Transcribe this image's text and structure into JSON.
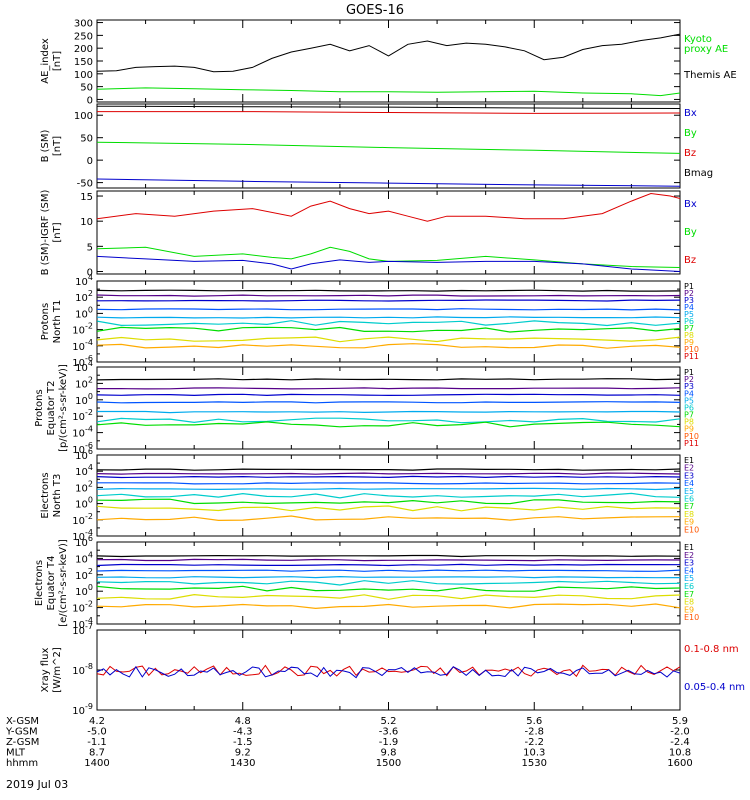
{
  "title": "GOES-16",
  "date": "2019 Jul 03",
  "colors": {
    "black": "#000000",
    "green": "#00dd00",
    "red": "#dd0000",
    "blue": "#0000cc",
    "p": [
      "#000000",
      "#550088",
      "#0000cc",
      "#0055ff",
      "#00aaee",
      "#00cccc",
      "#00dd00",
      "#dddd00",
      "#ffaa00",
      "#ff5500",
      "#dd0000"
    ]
  },
  "panels": [
    {
      "ylabel": [
        "AE_index",
        "[nT]"
      ],
      "log": false,
      "ylim": [
        -10,
        310
      ],
      "yticks": [
        "300",
        "250",
        "200",
        "150",
        "100",
        "50",
        "0"
      ],
      "legend": [
        {
          "text": "Kyoto",
          "color": "#00dd00"
        },
        {
          "text": "proxy AE",
          "color": "#00dd00"
        },
        {
          "text": "",
          "color": "#000"
        },
        {
          "text": "Themis AE",
          "color": "#000000"
        }
      ],
      "legendStyle": "ae"
    },
    {
      "ylabel": [
        "B (SM)",
        "[nT]"
      ],
      "log": false,
      "ylim": [
        -62,
        125
      ],
      "yticks": [
        "100",
        "50",
        "0",
        "-50"
      ],
      "ytickvals": [
        100,
        50,
        0,
        -50
      ],
      "legend": [
        {
          "text": "Bx",
          "color": "#0000cc"
        },
        {
          "text": "By",
          "color": "#00dd00"
        },
        {
          "text": "Bz",
          "color": "#dd0000"
        },
        {
          "text": "Bmag",
          "color": "#000000"
        }
      ],
      "legendStyle": "spread"
    },
    {
      "ylabel": [
        "B (SM)-IGRF (SM)",
        "[nT]"
      ],
      "log": false,
      "ylim": [
        -0.5,
        16
      ],
      "yticks": [
        "15",
        "10",
        "5",
        "0"
      ],
      "ytickvals": [
        15,
        10,
        5,
        0
      ],
      "legend": [
        {
          "text": "Bx",
          "color": "#0000cc"
        },
        {
          "text": "By",
          "color": "#00dd00"
        },
        {
          "text": "Bz",
          "color": "#dd0000"
        }
      ],
      "legendStyle": "spread3"
    },
    {
      "ylabel": [
        "Protons",
        "North T1"
      ],
      "log": true,
      "ylim": [
        -6,
        4
      ],
      "yticks": [
        "10^4",
        "10^2",
        "10^0",
        "10^-2",
        "10^-4",
        "10^-6"
      ],
      "ytickvals": [
        4,
        2,
        0,
        -2,
        -4,
        -6
      ],
      "legend": [
        "P1",
        "P2",
        "P3",
        "P4",
        "P5",
        "P6",
        "P7",
        "P8",
        "P9",
        "P10",
        "P11"
      ],
      "legendStyle": "list"
    },
    {
      "ylabel": [
        "Protons",
        "Equator T2",
        "[p/(cm²-s-sr-keV)]"
      ],
      "log": true,
      "ylim": [
        -6,
        4
      ],
      "yticks": [
        "10^4",
        "10^2",
        "10^0",
        "10^-2",
        "10^-4",
        "10^-6"
      ],
      "ytickvals": [
        4,
        2,
        0,
        -2,
        -4,
        -6
      ],
      "legend": [
        "P1",
        "P2",
        "P3",
        "P4",
        "P5",
        "P6",
        "P7",
        "P8",
        "P9",
        "P10",
        "P11"
      ],
      "legendStyle": "list"
    },
    {
      "ylabel": [
        "Electrons",
        "North T3"
      ],
      "log": true,
      "ylim": [
        -4,
        6
      ],
      "yticks": [
        "10^6",
        "10^4",
        "10^2",
        "10^0",
        "10^-2",
        "10^-4"
      ],
      "ytickvals": [
        6,
        4,
        2,
        0,
        -2,
        -4
      ],
      "legend": [
        "E1",
        "E2",
        "E3",
        "E4",
        "E5",
        "E6",
        "E7",
        "E8",
        "E9",
        "E10"
      ],
      "legendStyle": "list"
    },
    {
      "ylabel": [
        "Electrons",
        "Equator T4",
        "[e/(cm²-s-sr-keV)]"
      ],
      "log": true,
      "ylim": [
        -4,
        6
      ],
      "yticks": [
        "10^6",
        "10^4",
        "10^2",
        "10^0",
        "10^-2",
        "10^-4"
      ],
      "ytickvals": [
        6,
        4,
        2,
        0,
        -2,
        -4
      ],
      "legend": [
        "E1",
        "E2",
        "E3",
        "E4",
        "E5",
        "E6",
        "E7",
        "E8",
        "E9",
        "E10"
      ],
      "legendStyle": "list"
    },
    {
      "ylabel": [
        "Xray flux",
        "[W/m^2]"
      ],
      "log": true,
      "ylim": [
        -9,
        -7
      ],
      "yticks": [
        "10^-7",
        "10^-8",
        "10^-9"
      ],
      "ytickvals": [
        -7,
        -8,
        -9
      ],
      "legend": [
        {
          "text": "0.1-0.8 nm",
          "color": "#dd0000"
        },
        {
          "text": "0.05-0.4 nm",
          "color": "#0000cc"
        }
      ],
      "legendStyle": "xray"
    }
  ],
  "xaxis": {
    "rows": [
      {
        "label": "X-GSM",
        "values": [
          "4.2",
          "4.8",
          "5.2",
          "5.6",
          "5.9"
        ]
      },
      {
        "label": "Y-GSM",
        "values": [
          "-5.0",
          "-4.3",
          "-3.6",
          "-2.8",
          "-2.0"
        ]
      },
      {
        "label": "Z-GSM",
        "values": [
          "-1.1",
          "-1.5",
          "-1.9",
          "-2.2",
          "-2.4"
        ]
      },
      {
        "label": "MLT",
        "values": [
          "8.7",
          "9.2",
          "9.8",
          "10.3",
          "10.8"
        ]
      },
      {
        "label": "hhmm",
        "values": [
          "1400",
          "1430",
          "1500",
          "1530",
          "1600"
        ]
      }
    ],
    "range": [
      0,
      120
    ]
  },
  "chart_data": [
    {
      "type": "line",
      "ylabel": "AE_index [nT]",
      "xlim": [
        0,
        120
      ],
      "ylim": [
        -10,
        310
      ],
      "series": [
        {
          "name": "Themis AE",
          "color": "#000000",
          "x": [
            0,
            4,
            8,
            12,
            16,
            20,
            24,
            28,
            32,
            36,
            40,
            44,
            48,
            52,
            56,
            60,
            64,
            68,
            72,
            76,
            80,
            84,
            88,
            92,
            96,
            100,
            104,
            108,
            112,
            116,
            120
          ],
          "y": [
            110,
            112,
            125,
            128,
            130,
            125,
            108,
            110,
            125,
            160,
            185,
            200,
            215,
            190,
            210,
            170,
            215,
            228,
            210,
            220,
            215,
            205,
            190,
            155,
            165,
            195,
            210,
            215,
            230,
            240,
            255
          ]
        },
        {
          "name": "Kyoto proxy AE",
          "color": "#00dd00",
          "x": [
            0,
            10,
            20,
            30,
            40,
            50,
            60,
            70,
            80,
            90,
            100,
            110,
            116,
            120
          ],
          "y": [
            40,
            45,
            42,
            38,
            35,
            30,
            30,
            28,
            30,
            32,
            25,
            22,
            15,
            25
          ]
        }
      ]
    },
    {
      "type": "line",
      "ylabel": "B (SM) [nT]",
      "xlim": [
        0,
        120
      ],
      "ylim": [
        -62,
        125
      ],
      "series": [
        {
          "name": "Bmag",
          "color": "#000000",
          "x": [
            0,
            30,
            60,
            90,
            120
          ],
          "y": [
            120,
            119,
            118,
            116,
            115
          ]
        },
        {
          "name": "Bz",
          "color": "#dd0000",
          "x": [
            0,
            30,
            60,
            90,
            120
          ],
          "y": [
            108,
            108,
            106,
            104,
            105
          ]
        },
        {
          "name": "By",
          "color": "#00dd00",
          "x": [
            0,
            30,
            60,
            90,
            120
          ],
          "y": [
            40,
            35,
            28,
            22,
            15
          ]
        },
        {
          "name": "Bx",
          "color": "#0000cc",
          "x": [
            0,
            30,
            60,
            90,
            120
          ],
          "y": [
            -42,
            -47,
            -51,
            -55,
            -58
          ]
        }
      ]
    },
    {
      "type": "line",
      "ylabel": "B (SM)-IGRF (SM) [nT]",
      "xlim": [
        0,
        120
      ],
      "ylim": [
        -0.5,
        16
      ],
      "series": [
        {
          "name": "Bz",
          "color": "#dd0000",
          "x": [
            0,
            8,
            16,
            24,
            32,
            40,
            44,
            48,
            52,
            56,
            60,
            64,
            68,
            72,
            80,
            88,
            96,
            104,
            110,
            114,
            118,
            120
          ],
          "y": [
            10.5,
            11.5,
            11,
            12,
            12.5,
            11,
            13,
            14,
            12.5,
            11.5,
            12,
            11,
            10,
            11,
            11,
            10.5,
            10.5,
            11.5,
            14,
            15.5,
            15,
            14.5
          ]
        },
        {
          "name": "By",
          "color": "#00dd00",
          "x": [
            0,
            10,
            20,
            30,
            36,
            40,
            44,
            48,
            52,
            56,
            60,
            70,
            80,
            90,
            100,
            110,
            120
          ],
          "y": [
            4.5,
            4.8,
            3,
            3.5,
            2.8,
            2.5,
            3.5,
            4.8,
            4,
            2.5,
            2,
            2.2,
            3,
            2.3,
            1.5,
            1,
            0.8
          ]
        },
        {
          "name": "Bx",
          "color": "#0000cc",
          "x": [
            0,
            10,
            20,
            30,
            36,
            40,
            44,
            50,
            56,
            60,
            70,
            80,
            90,
            100,
            110,
            120
          ],
          "y": [
            3,
            2.5,
            2,
            2.2,
            1.5,
            0.5,
            1.5,
            2.3,
            1.8,
            2,
            1.8,
            2,
            2,
            1.5,
            0.5,
            0
          ]
        }
      ]
    },
    {
      "type": "line",
      "ylabel": "Protons North T1",
      "log": true,
      "xlim": [
        0,
        120
      ],
      "series": [
        {
          "name": "P1",
          "values_log10": 2.8
        },
        {
          "name": "P2",
          "values_log10": 2.2
        },
        {
          "name": "P3",
          "values_log10": 1.6
        },
        {
          "name": "P4",
          "values_log10": 0.5
        },
        {
          "name": "P5",
          "values_log10": -0.5
        },
        {
          "name": "P6",
          "values_log10": -1.2
        },
        {
          "name": "P7",
          "values_log10": -2.0
        },
        {
          "name": "P8",
          "values_log10": -3.2
        },
        {
          "name": "P9",
          "values_log10": -4.0
        }
      ]
    },
    {
      "type": "line",
      "ylabel": "Protons Equator T2 [p/(cm2-s-sr-keV)]",
      "log": true,
      "xlim": [
        0,
        120
      ],
      "series": [
        {
          "name": "P1",
          "values_log10": 2.5
        },
        {
          "name": "P2",
          "values_log10": 1.4
        },
        {
          "name": "P3",
          "values_log10": 0.6
        },
        {
          "name": "P4",
          "values_log10": -0.3
        },
        {
          "name": "P5",
          "values_log10": -1.5
        },
        {
          "name": "P6",
          "values_log10": -2.5
        },
        {
          "name": "P7",
          "values_log10": -3.0
        }
      ]
    },
    {
      "type": "line",
      "ylabel": "Electrons North T3",
      "log": true,
      "xlim": [
        0,
        120
      ],
      "series": [
        {
          "name": "E1",
          "values_log10": 4.2
        },
        {
          "name": "E2",
          "values_log10": 3.7
        },
        {
          "name": "E3",
          "values_log10": 3.3
        },
        {
          "name": "E4",
          "values_log10": 2.5
        },
        {
          "name": "E5",
          "values_log10": 1.8
        },
        {
          "name": "E6",
          "values_log10": 1.0
        },
        {
          "name": "E7",
          "values_log10": 0.3
        },
        {
          "name": "E8",
          "values_log10": -0.6
        },
        {
          "name": "E9",
          "values_log10": -1.8
        }
      ]
    },
    {
      "type": "line",
      "ylabel": "Electrons Equator T4 [e/(cm2-s-sr-keV)]",
      "log": true,
      "xlim": [
        0,
        120
      ],
      "series": [
        {
          "name": "E1",
          "values_log10": 4.3
        },
        {
          "name": "E2",
          "values_log10": 3.8
        },
        {
          "name": "E3",
          "values_log10": 3.2
        },
        {
          "name": "E4",
          "values_log10": 2.5
        },
        {
          "name": "E5",
          "values_log10": 1.7
        },
        {
          "name": "E6",
          "values_log10": 1.0
        },
        {
          "name": "E7",
          "values_log10": 0.3
        },
        {
          "name": "E8",
          "values_log10": -0.7
        },
        {
          "name": "E9",
          "values_log10": -1.8
        }
      ]
    },
    {
      "type": "line",
      "ylabel": "Xray flux [W/m^2]",
      "log": true,
      "xlim": [
        0,
        120
      ],
      "ylim": [
        -9,
        -7
      ],
      "series": [
        {
          "name": "0.1-0.8 nm",
          "color": "#dd0000",
          "level_log10": -8.02
        },
        {
          "name": "0.05-0.4 nm",
          "color": "#0000cc",
          "level_log10": -8.05
        }
      ]
    }
  ]
}
